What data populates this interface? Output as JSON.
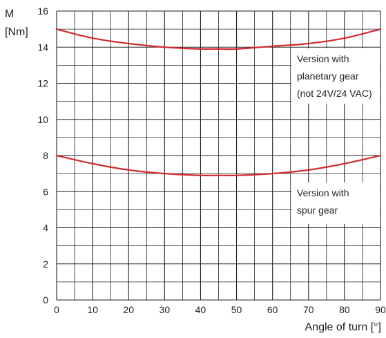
{
  "chart_data": {
    "type": "line",
    "title": "",
    "ylabel_symbol": "M",
    "ylabel_unit": "[Nm]",
    "xlabel": "Angle of turn [°]",
    "xlim": [
      0,
      90
    ],
    "ylim": [
      0,
      16
    ],
    "x_ticks": [
      0,
      10,
      20,
      30,
      40,
      50,
      60,
      70,
      80,
      90
    ],
    "x_tick_labels": [
      "0",
      "10",
      "20",
      "30",
      "40",
      "50",
      "60",
      "70",
      "80",
      "90"
    ],
    "y_ticks": [
      0,
      2,
      4,
      6,
      8,
      10,
      12,
      14,
      16
    ],
    "y_tick_labels": [
      "0",
      "2",
      "4",
      "6",
      "8",
      "10",
      "12",
      "14",
      "16"
    ],
    "grid": true,
    "series_color": "#d42a2f",
    "series": [
      {
        "x": [
          0,
          10,
          20,
          30,
          40,
          45,
          50,
          60,
          70,
          80,
          90
        ],
        "values": [
          15.0,
          14.5,
          14.2,
          14.0,
          13.9,
          13.9,
          13.9,
          14.05,
          14.2,
          14.5,
          15.0
        ]
      },
      {
        "x": [
          0,
          10,
          20,
          30,
          40,
          45,
          50,
          60,
          70,
          80,
          90
        ],
        "values": [
          8.0,
          7.55,
          7.2,
          7.0,
          6.9,
          6.9,
          6.9,
          7.0,
          7.2,
          7.55,
          8.0
        ]
      }
    ],
    "annotations": [
      {
        "lines": [
          "Version with",
          "planetary gear",
          "(not 24V/24 VAC)"
        ]
      },
      {
        "lines": [
          "Version with",
          "spur gear"
        ]
      }
    ]
  }
}
